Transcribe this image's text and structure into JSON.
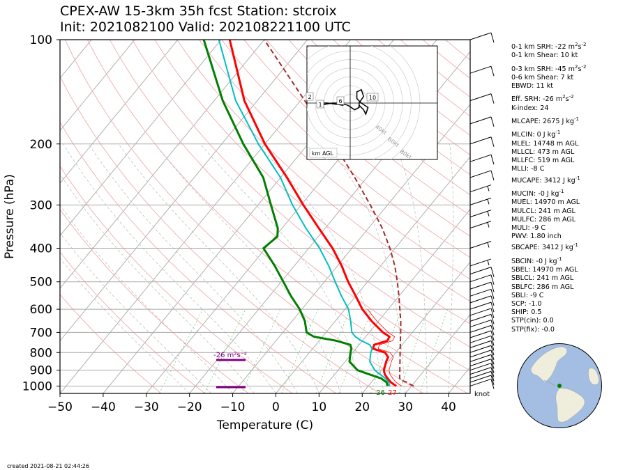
{
  "title": {
    "line1": "CPEX-AW 15-3km  35h fcst  Station: stcroix",
    "line2": "Init: 2021082100  Valid: 202108221100 UTC"
  },
  "indices": [
    {
      "pre": "0-1 km SRH: -22 m",
      "sup": "2",
      "mid": "s",
      "sup2": "-2",
      "post": ""
    },
    {
      "pre": "0-1 km Shear: 10 kt"
    },
    {
      "pre": "0-3 km SRH: -45 m",
      "sup": "2",
      "mid": "s",
      "sup2": "-2",
      "post": "",
      "gap": true
    },
    {
      "pre": "0-6 km Shear: 7 kt"
    },
    {
      "pre": "EBWD: 11 kt"
    },
    {
      "pre": "Eff. SRH: -26 m",
      "sup": "2",
      "mid": "s",
      "sup2": "-2",
      "post": "",
      "gap": true
    },
    {
      "pre": "K-index: 24"
    },
    {
      "pre": "MLCAPE: 2675 J kg",
      "sup": "-1",
      "gap": true
    },
    {
      "pre": "MLCIN: 0 J kg",
      "sup": "-1",
      "gap": true
    },
    {
      "pre": "MLEL: 14748 m AGL"
    },
    {
      "pre": "MLLCL: 473 m AGL"
    },
    {
      "pre": "MLLFC: 519 m AGL"
    },
    {
      "pre": "MLLI: -8 C"
    },
    {
      "pre": "MUCAPE: 3412 J kg",
      "sup": "-1"
    },
    {
      "pre": "MUCIN: -0 J kg",
      "sup": "-1",
      "gap": true
    },
    {
      "pre": "MUEL: 14970 m AGL"
    },
    {
      "pre": "MULCL: 241 m AGL"
    },
    {
      "pre": "MULFC: 286 m AGL"
    },
    {
      "pre": "MULI: -9 C"
    },
    {
      "pre": "PWV: 1.80 inch"
    },
    {
      "pre": "SBCAPE: 3412 J kg",
      "sup": "-1"
    },
    {
      "pre": "SBCIN: -0 J kg",
      "sup": "-1",
      "gap": true
    },
    {
      "pre": "SBEL: 14970 m AGL"
    },
    {
      "pre": "SBLCL: 241 m AGL"
    },
    {
      "pre": "SBLFC: 286 m AGL"
    },
    {
      "pre": "SBLI: -9 C"
    },
    {
      "pre": "SCP: -1.0"
    },
    {
      "pre": "SHIP: 0.5"
    },
    {
      "pre": "STP(cin): 0.0"
    },
    {
      "pre": "STP(fix): -0.0"
    }
  ],
  "created": "created 2021-08-21 02:44:26",
  "colors": {
    "temperature": "#ff0000",
    "dewpoint": "#008000",
    "wetbulb": "#00bfbf",
    "parcel": "#a52a2a",
    "srh_bar": "#800080",
    "isotherm": "#b0b0b0",
    "dry_adiabat": "#f4b3b3",
    "moist_adiabat": "#c0c0c0",
    "mixing_ratio": "#8fd88f",
    "ocean": "#a3bde3",
    "land": "#efeedc"
  },
  "chart_data": {
    "type": "line",
    "subtype": "skew-T log-P",
    "xlabel": "Temperature (C)",
    "ylabel": "Pressure (hPa)",
    "xlim": [
      -50,
      45
    ],
    "ylim": [
      1050,
      100
    ],
    "yscale": "log",
    "xticks": [
      -50,
      -40,
      -30,
      -20,
      -10,
      0,
      10,
      20,
      30,
      40
    ],
    "yticks": [
      1000,
      900,
      800,
      700,
      600,
      500,
      400,
      300,
      200,
      100
    ],
    "grid": true,
    "series": [
      {
        "name": "temperature",
        "points": [
          [
            1000,
            26.5
          ],
          [
            975,
            24.5
          ],
          [
            950,
            23
          ],
          [
            925,
            21.6
          ],
          [
            900,
            20.6
          ],
          [
            850,
            19.5
          ],
          [
            825,
            19.1
          ],
          [
            800,
            17.5
          ],
          [
            780,
            14
          ],
          [
            760,
            13.5
          ],
          [
            740,
            15.8
          ],
          [
            720,
            15.5
          ],
          [
            700,
            13.2
          ],
          [
            650,
            8.5
          ],
          [
            600,
            4
          ],
          [
            550,
            0
          ],
          [
            500,
            -4.5
          ],
          [
            450,
            -9
          ],
          [
            400,
            -14.5
          ],
          [
            350,
            -21.5
          ],
          [
            300,
            -29.5
          ],
          [
            250,
            -38.5
          ],
          [
            200,
            -50
          ],
          [
            150,
            -63
          ],
          [
            100,
            -78
          ]
        ]
      },
      {
        "name": "dewpoint",
        "points": [
          [
            1000,
            24.5
          ],
          [
            975,
            23.5
          ],
          [
            950,
            21.5
          ],
          [
            925,
            18
          ],
          [
            900,
            14.5
          ],
          [
            850,
            11
          ],
          [
            800,
            9.5
          ],
          [
            780,
            9
          ],
          [
            760,
            8
          ],
          [
            740,
            4
          ],
          [
            720,
            -2
          ],
          [
            700,
            -4.5
          ],
          [
            650,
            -7
          ],
          [
            600,
            -10.5
          ],
          [
            550,
            -15
          ],
          [
            500,
            -19.5
          ],
          [
            450,
            -24.5
          ],
          [
            400,
            -30.5
          ],
          [
            370,
            -29.5
          ],
          [
            350,
            -31
          ],
          [
            300,
            -37
          ],
          [
            250,
            -44
          ],
          [
            200,
            -55
          ],
          [
            150,
            -68
          ],
          [
            100,
            -84
          ]
        ]
      },
      {
        "name": "wetbulb",
        "points": [
          [
            1000,
            25
          ],
          [
            975,
            24
          ],
          [
            950,
            22.5
          ],
          [
            925,
            20.5
          ],
          [
            900,
            18.5
          ],
          [
            850,
            15.7
          ],
          [
            800,
            14.2
          ],
          [
            780,
            13.8
          ],
          [
            760,
            12.5
          ],
          [
            740,
            9.8
          ],
          [
            720,
            7.6
          ],
          [
            700,
            6
          ],
          [
            650,
            3.6
          ],
          [
            600,
            0.8
          ],
          [
            550,
            -3.3
          ],
          [
            500,
            -7.5
          ],
          [
            450,
            -12
          ],
          [
            400,
            -17.5
          ],
          [
            350,
            -24.5
          ],
          [
            300,
            -32
          ],
          [
            250,
            -40
          ],
          [
            200,
            -51.5
          ],
          [
            150,
            -65
          ],
          [
            100,
            -80.5
          ]
        ]
      },
      {
        "name": "parcel",
        "points": [
          [
            1000,
            30.5
          ],
          [
            975,
            28.2
          ],
          [
            960,
            26.2
          ],
          [
            940,
            25.5
          ],
          [
            900,
            24.3
          ],
          [
            850,
            22.7
          ],
          [
            800,
            21
          ],
          [
            750,
            19.2
          ],
          [
            700,
            17.3
          ],
          [
            650,
            15.2
          ],
          [
            600,
            12.7
          ],
          [
            550,
            10
          ],
          [
            500,
            6.9
          ],
          [
            450,
            3.3
          ],
          [
            400,
            -1.2
          ],
          [
            350,
            -6.8
          ],
          [
            300,
            -14
          ],
          [
            250,
            -22.8
          ],
          [
            200,
            -34
          ],
          [
            150,
            -49
          ],
          [
            100,
            -70
          ]
        ]
      }
    ],
    "annotations": {
      "surface_temp": "27",
      "surface_dewp": "26",
      "srh_label": "-26 m²s⁻²",
      "wind_unit": "knot"
    },
    "hodograph": {
      "label": "km AGL",
      "ring_labels": [
        "40kt",
        "60kt",
        "80kt"
      ],
      "height_labels": [
        "1",
        "2",
        "6",
        "10"
      ],
      "trace_uv": [
        [
          -3,
          -1
        ],
        [
          -10,
          0
        ],
        [
          -12,
          0
        ],
        [
          -14,
          -1
        ],
        [
          -8,
          0
        ],
        [
          -5,
          0
        ],
        [
          -1,
          -1
        ],
        [
          2,
          -3
        ],
        [
          4,
          -2
        ],
        [
          4,
          0
        ],
        [
          6,
          3
        ],
        [
          5,
          6
        ],
        [
          3,
          5
        ],
        [
          3,
          2
        ],
        [
          5,
          0
        ],
        [
          8,
          -2
        ],
        [
          7,
          -5
        ],
        [
          6,
          -3
        ],
        [
          4,
          -1
        ]
      ]
    },
    "winds": [
      {
        "p": 1000,
        "spd": 10
      },
      {
        "p": 975,
        "spd": 10
      },
      {
        "p": 950,
        "spd": 10
      },
      {
        "p": 925,
        "spd": 10
      },
      {
        "p": 900,
        "spd": 10
      },
      {
        "p": 875,
        "spd": 10
      },
      {
        "p": 850,
        "spd": 10
      },
      {
        "p": 825,
        "spd": 10
      },
      {
        "p": 800,
        "spd": 10
      },
      {
        "p": 775,
        "spd": 10
      },
      {
        "p": 750,
        "spd": 10
      },
      {
        "p": 725,
        "spd": 10
      },
      {
        "p": 700,
        "spd": 10
      },
      {
        "p": 675,
        "spd": 10
      },
      {
        "p": 650,
        "spd": 10
      },
      {
        "p": 625,
        "spd": 10
      },
      {
        "p": 600,
        "spd": 10
      },
      {
        "p": 575,
        "spd": 10
      },
      {
        "p": 550,
        "spd": 10
      },
      {
        "p": 525,
        "spd": 10
      },
      {
        "p": 500,
        "spd": 10
      },
      {
        "p": 475,
        "spd": 10
      },
      {
        "p": 450,
        "spd": 5
      },
      {
        "p": 400,
        "spd": 5
      },
      {
        "p": 350,
        "spd": 5
      },
      {
        "p": 325,
        "spd": 5
      },
      {
        "p": 300,
        "spd": 5
      },
      {
        "p": 275,
        "spd": 5
      },
      {
        "p": 250,
        "spd": 10
      },
      {
        "p": 225,
        "spd": 10
      },
      {
        "p": 200,
        "spd": 10
      },
      {
        "p": 175,
        "spd": 10
      },
      {
        "p": 150,
        "spd": 10
      },
      {
        "p": 125,
        "spd": 10
      },
      {
        "p": 100,
        "spd": 10
      }
    ]
  }
}
